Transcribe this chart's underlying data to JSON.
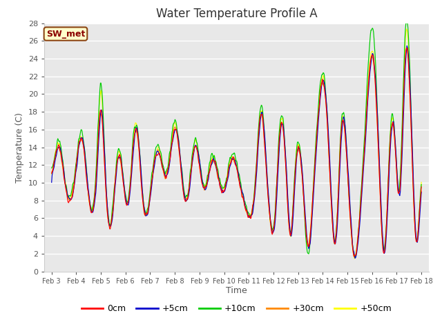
{
  "title": "Water Temperature Profile A",
  "xlabel": "Time",
  "ylabel": "Temperature (C)",
  "ylim": [
    0,
    28
  ],
  "x_tick_labels": [
    "Feb 3",
    "Feb 4",
    "Feb 5",
    "Feb 6",
    "Feb 7",
    "Feb 8",
    "Feb 9",
    "Feb 10",
    "Feb 11",
    "Feb 12",
    "Feb 13",
    "Feb 14",
    "Feb 15",
    "Feb 16",
    "Feb 17",
    "Feb 18"
  ],
  "series_labels": [
    "0cm",
    "+5cm",
    "+10cm",
    "+30cm",
    "+50cm"
  ],
  "series_colors": [
    "#ff0000",
    "#0000cc",
    "#00cc00",
    "#ff8800",
    "#ffff00"
  ],
  "annotation_text": "SW_met",
  "bg_color": "#e8e8e8",
  "title_fontsize": 12,
  "axis_fontsize": 9,
  "legend_fontsize": 9
}
